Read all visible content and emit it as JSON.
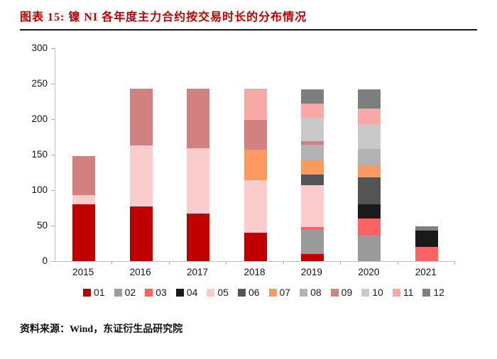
{
  "header": {
    "title": "图表 15: 镍 NI 各年度主力合约按交易时长的分布情况"
  },
  "footer": {
    "source": "资料来源：Wind，东证衍生品研究院"
  },
  "chart_data": {
    "type": "bar",
    "stacked": true,
    "title": "镍 NI 各年度主力合约按交易时长的分布情况",
    "xlabel": "",
    "ylabel": "",
    "categories": [
      "2015",
      "2016",
      "2017",
      "2018",
      "2019",
      "2020",
      "2021"
    ],
    "ylim": [
      0,
      300
    ],
    "yticks": [
      0,
      50,
      100,
      150,
      200,
      250,
      300
    ],
    "grid": false,
    "legend_position": "bottom",
    "series": [
      {
        "name": "01",
        "color": "#C00000",
        "values": [
          80,
          77,
          67,
          40,
          10,
          0,
          0
        ]
      },
      {
        "name": "02",
        "color": "#9B9B9B",
        "values": [
          0,
          0,
          0,
          0,
          34,
          36,
          0
        ]
      },
      {
        "name": "03",
        "color": "#F96363",
        "values": [
          0,
          0,
          0,
          0,
          4,
          24,
          20
        ]
      },
      {
        "name": "04",
        "color": "#1A1A1A",
        "values": [
          0,
          0,
          0,
          0,
          0,
          20,
          23
        ]
      },
      {
        "name": "05",
        "color": "#FACCCC",
        "values": [
          13,
          86,
          92,
          74,
          59,
          0,
          0
        ]
      },
      {
        "name": "06",
        "color": "#545454",
        "values": [
          0,
          0,
          0,
          0,
          15,
          38,
          0
        ]
      },
      {
        "name": "07",
        "color": "#FB9A5F",
        "values": [
          0,
          0,
          0,
          43,
          21,
          16,
          0
        ]
      },
      {
        "name": "08",
        "color": "#B2B2B2",
        "values": [
          0,
          0,
          0,
          0,
          21,
          24,
          0
        ]
      },
      {
        "name": "09",
        "color": "#D38080",
        "values": [
          55,
          80,
          84,
          42,
          5,
          0,
          0
        ]
      },
      {
        "name": "10",
        "color": "#C9C9C9",
        "values": [
          0,
          0,
          0,
          0,
          33,
          35,
          0
        ]
      },
      {
        "name": "11",
        "color": "#F9A8A8",
        "values": [
          0,
          0,
          0,
          44,
          20,
          22,
          0
        ]
      },
      {
        "name": "12",
        "color": "#7E7E7E",
        "values": [
          0,
          0,
          0,
          0,
          20,
          27,
          6
        ]
      }
    ]
  }
}
